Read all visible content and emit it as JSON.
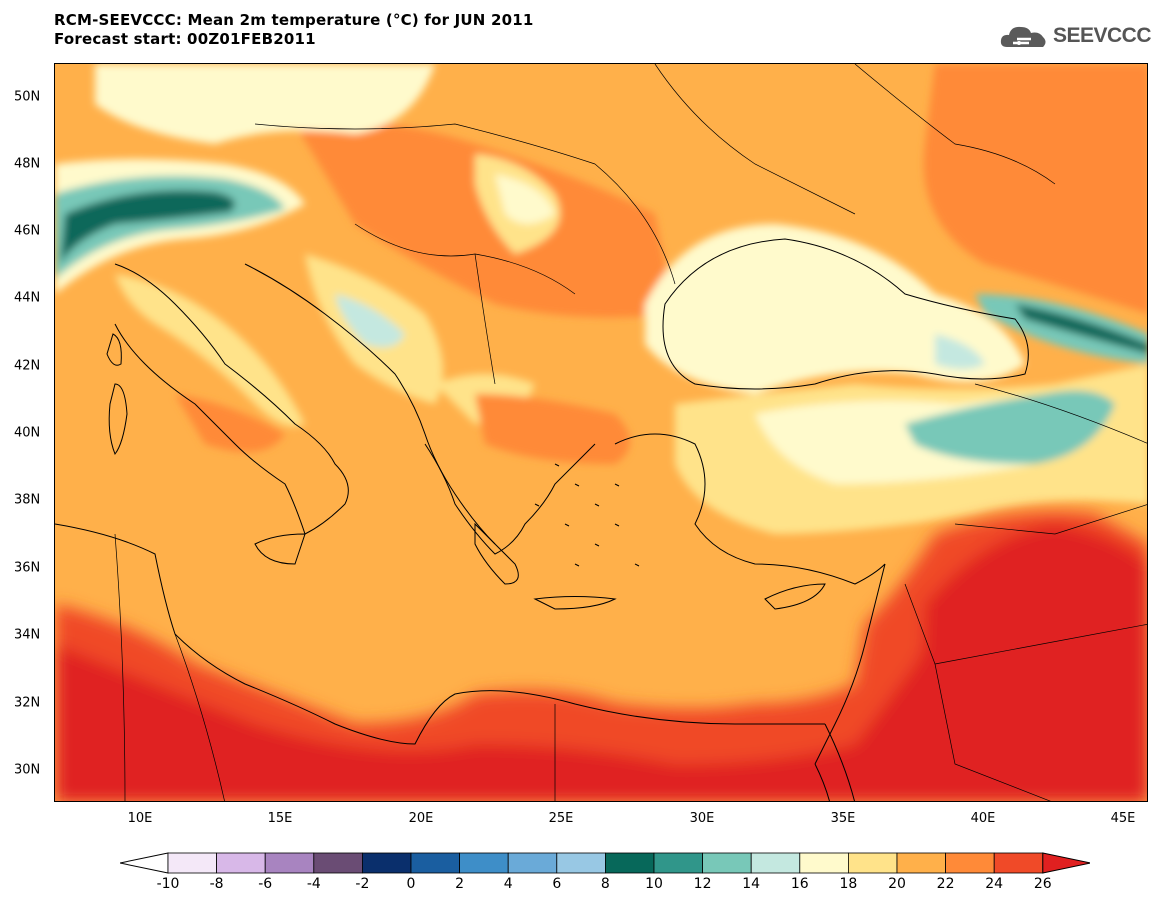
{
  "header": {
    "title_line1": "RCM-SEEVCCC: Mean 2m temperature (°C) for JUN 2011",
    "title_line2": "Forecast start: 00Z01FEB2011",
    "logo_text": "SEEVCCC",
    "logo_icon": "cloud-icon"
  },
  "map": {
    "lat_labels": [
      "50N",
      "48N",
      "46N",
      "44N",
      "42N",
      "40N",
      "38N",
      "36N",
      "34N",
      "32N",
      "30N"
    ],
    "lon_labels": [
      "10E",
      "15E",
      "20E",
      "25E",
      "30E",
      "35E",
      "40E",
      "45E"
    ]
  },
  "colorbar": {
    "labels": [
      "-10",
      "-8",
      "-6",
      "-4",
      "-2",
      "0",
      "2",
      "4",
      "6",
      "8",
      "10",
      "12",
      "14",
      "16",
      "18",
      "20",
      "22",
      "24",
      "26"
    ],
    "colors": [
      "#f4e8f8",
      "#d8b8e8",
      "#a884c0",
      "#6a4c74",
      "#0a2f6c",
      "#1a5ea0",
      "#3e8ec8",
      "#6aaad8",
      "#98c8e4",
      "#07685a",
      "#30968a",
      "#78c8b8",
      "#c4e8e0",
      "#fffacc",
      "#ffe38a",
      "#ffb04a",
      "#ff8a38",
      "#f04a28"
    ],
    "under_color": "#ffffff",
    "over_color": "#e02020"
  }
}
